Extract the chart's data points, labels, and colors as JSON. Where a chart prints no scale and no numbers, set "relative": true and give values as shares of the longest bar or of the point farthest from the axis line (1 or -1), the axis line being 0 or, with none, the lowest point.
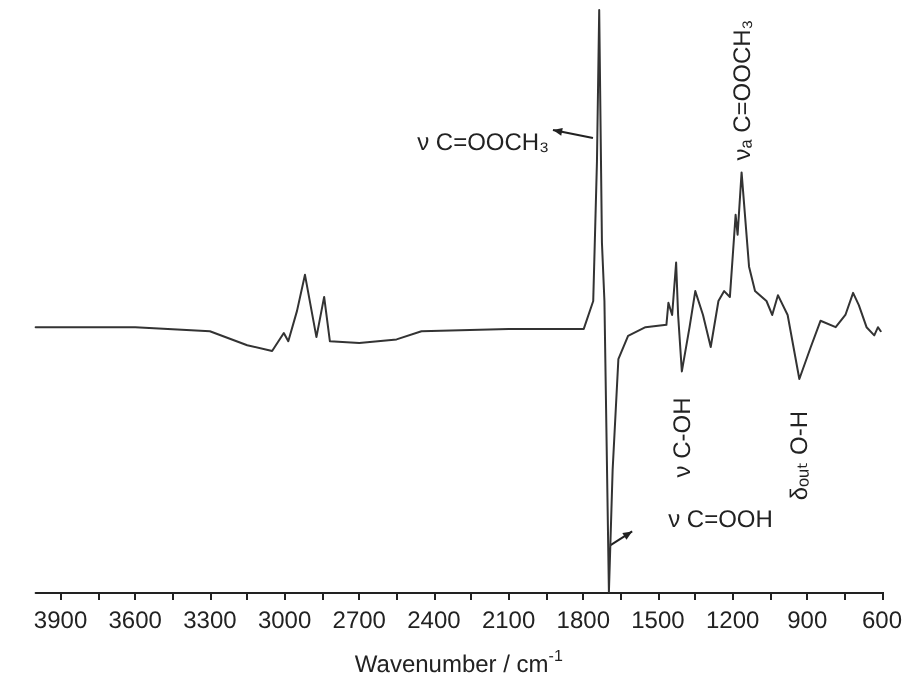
{
  "chart_data": {
    "type": "line",
    "relative": true,
    "xlabel": "Wavenumber / cm$^{-1}$",
    "color": "#333333",
    "grid": false,
    "marker": "none",
    "xlim": [
      4000,
      600
    ],
    "xticks": [
      3900,
      {
        "value": 3750,
        "label": null
      },
      3600,
      {
        "value": 3450,
        "label": null
      },
      3300,
      {
        "value": 3150,
        "label": null
      },
      3000,
      {
        "value": 2850,
        "label": null
      },
      2700,
      {
        "value": 2550,
        "label": null
      },
      2400,
      {
        "value": 2250,
        "label": null
      },
      2100,
      {
        "value": 1950,
        "label": null
      },
      1800,
      {
        "value": 1650,
        "label": null
      },
      1500,
      {
        "value": 1350,
        "label": null
      },
      1200,
      {
        "value": 1050,
        "label": null
      },
      900,
      {
        "value": 750,
        "label": null
      },
      600
    ],
    "x": [
      4000,
      3900,
      3600,
      3300,
      3150,
      3050,
      3003,
      2985,
      2950,
      2918,
      2872,
      2841,
      2818,
      2700,
      2550,
      2450,
      2100,
      1798,
      1760,
      1745,
      1736,
      1725,
      1715,
      1697,
      1682,
      1659,
      1620,
      1550,
      1466,
      1458,
      1443,
      1427,
      1419,
      1404,
      1373,
      1350,
      1319,
      1288,
      1257,
      1234,
      1211,
      1188,
      1180,
      1164,
      1134,
      1110,
      1064,
      1041,
      1018,
      979,
      932,
      886,
      847,
      786,
      747,
      716,
      693,
      662,
      631,
      616,
      605
    ],
    "values": [
      0.455,
      0.455,
      0.455,
      0.448,
      0.424,
      0.414,
      0.445,
      0.431,
      0.483,
      0.545,
      0.438,
      0.507,
      0.431,
      0.428,
      0.434,
      0.448,
      0.452,
      0.452,
      0.5,
      0.74,
      1,
      0.6,
      0.5,
      0,
      0.21,
      0.4,
      0.44,
      0.455,
      0.459,
      0.497,
      0.476,
      0.566,
      0.476,
      0.379,
      0.455,
      0.517,
      0.476,
      0.421,
      0.5,
      0.517,
      0.507,
      0.648,
      0.614,
      0.721,
      0.559,
      0.517,
      0.5,
      0.476,
      0.51,
      0.476,
      0.366,
      0.421,
      0.466,
      0.455,
      0.476,
      0.514,
      0.493,
      0.455,
      0.441,
      0.455,
      0.448
    ],
    "annotations": [
      {
        "text": "ν C=OOCH₃",
        "x": 1745,
        "y": 0.78
      },
      {
        "text": "ν C=OOH",
        "x": 1700,
        "y": 0.08
      },
      {
        "text": "ν C-OH",
        "x": 1404,
        "y": 0.379
      },
      {
        "text": "νₐ C=OOCH₃",
        "x": 1164,
        "y": 0.721
      },
      {
        "text": "δₒᵤₜ O-H",
        "x": 932,
        "y": 0.366
      }
    ]
  }
}
